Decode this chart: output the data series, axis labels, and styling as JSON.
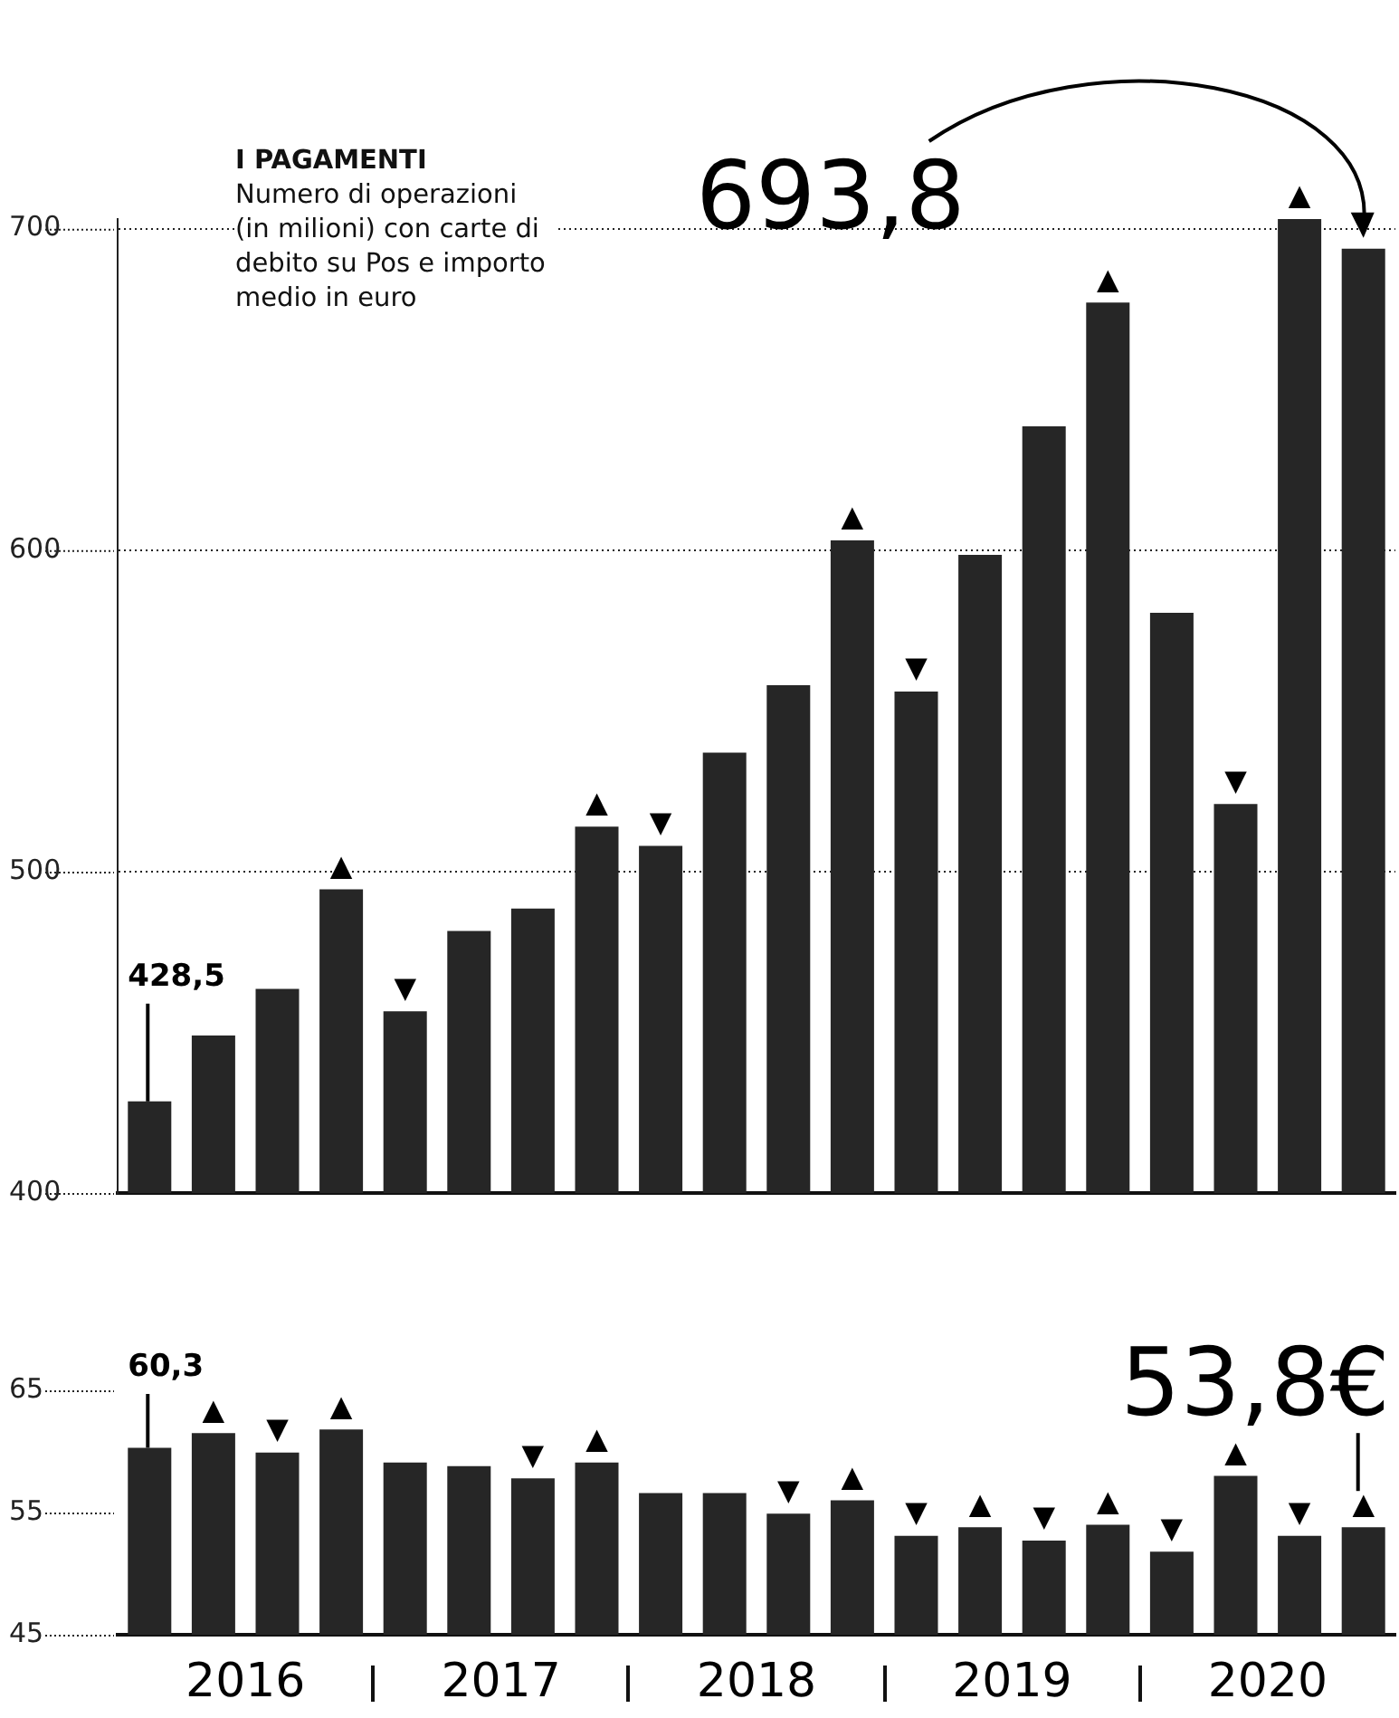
{
  "chart_data": [
    {
      "type": "bar",
      "title": "I PAGAMENTI",
      "subtitle": "Numero di operazioni (in milioni) con carte di debito su Pos e importo medio in euro",
      "categories": [
        null,
        null,
        null,
        null,
        null,
        null,
        null,
        null,
        null,
        null,
        null,
        null,
        null,
        null,
        null,
        null,
        null,
        null,
        null,
        null
      ],
      "values": [
        428.5,
        449,
        463.5,
        494.5,
        456.5,
        481.5,
        488.5,
        514,
        508,
        537,
        558,
        603,
        556,
        598.5,
        638.5,
        677,
        580.5,
        521,
        703,
        693.8
      ],
      "color": "#262626",
      "ylim": [
        400,
        703
      ],
      "yticks": [
        400,
        500,
        600,
        700
      ],
      "grid": "y",
      "tick_labels": "y",
      "value_labels": [
        null,
        null,
        null,
        "▲",
        "▼",
        null,
        null,
        "▲",
        "▼",
        null,
        null,
        "▲",
        "▼",
        null,
        null,
        "▲",
        null,
        "▼",
        "▲",
        null
      ],
      "annotations": [
        "428,5",
        "693,8"
      ]
    },
    {
      "type": "bar",
      "categories": [
        null,
        null,
        null,
        null,
        null,
        null,
        null,
        null,
        null,
        null,
        null,
        null,
        null,
        null,
        null,
        null,
        null,
        null,
        null,
        null
      ],
      "values": [
        60.3,
        61.5,
        59.9,
        61.8,
        59.1,
        58.8,
        57.8,
        59.1,
        56.6,
        56.6,
        54.9,
        56,
        53.1,
        53.8,
        52.7,
        54,
        51.8,
        58,
        53.1,
        53.8
      ],
      "color": "#262626",
      "ylim": [
        45,
        65
      ],
      "yticks": [
        45,
        55,
        65
      ],
      "grid": false,
      "value_labels": [
        null,
        "▲",
        "▼",
        "▲",
        null,
        null,
        "▼",
        "▲",
        null,
        null,
        "▼",
        "▲",
        "▼",
        "▲",
        "▼",
        "▲",
        "▼",
        "▲",
        "▼",
        "▲"
      ],
      "annotations": [
        "60,3",
        "53,8€",
        "2016",
        "2017",
        "2018",
        "2019",
        "2020"
      ]
    }
  ]
}
